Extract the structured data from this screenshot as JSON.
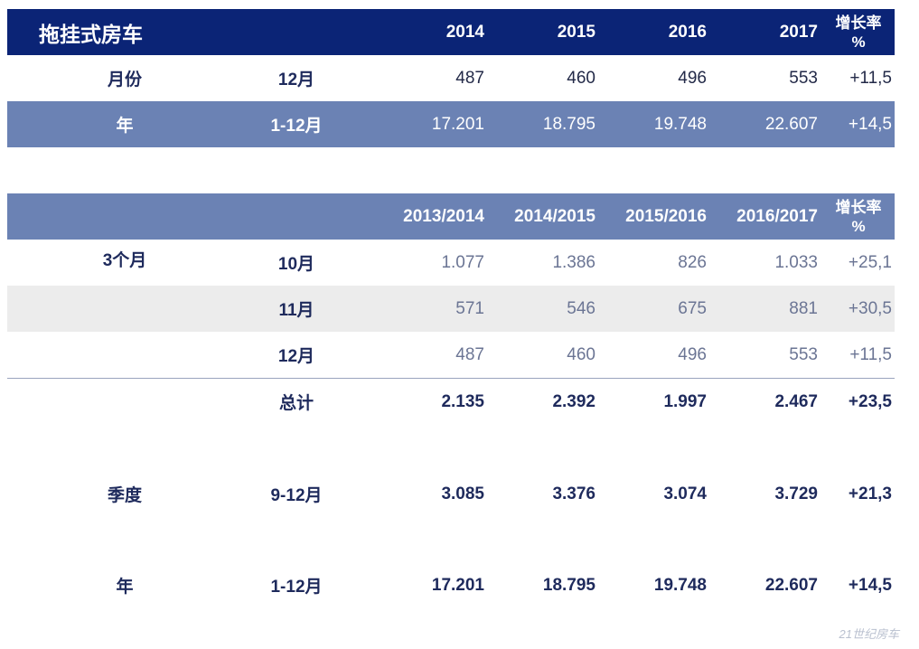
{
  "table1": {
    "title": "拖挂式房车",
    "years": [
      "2014",
      "2015",
      "2016",
      "2017"
    ],
    "growth_line1": "增长率",
    "growth_line2": "%",
    "rows": [
      {
        "label": "月份",
        "period": "12月",
        "values": [
          "487",
          "460",
          "496",
          "553"
        ],
        "growth": "+11,5"
      },
      {
        "label": "年",
        "period": "1-12月",
        "values": [
          "17.201",
          "18.795",
          "19.748",
          "22.607"
        ],
        "growth": "+14,5"
      }
    ]
  },
  "table2": {
    "seasons": [
      "2013/2014",
      "2014/2015",
      "2015/2016",
      "2016/2017"
    ],
    "growth_line1": "增长率",
    "growth_line2": "%",
    "group_label": "3个月",
    "rows": [
      {
        "period": "10月",
        "values": [
          "1.077",
          "1.386",
          "826",
          "1.033"
        ],
        "growth": "+25,1"
      },
      {
        "period": "11月",
        "values": [
          "571",
          "546",
          "675",
          "881"
        ],
        "growth": "+30,5"
      },
      {
        "period": "12月",
        "values": [
          "487",
          "460",
          "496",
          "553"
        ],
        "growth": "+11,5"
      }
    ],
    "total": {
      "period": "总计",
      "values": [
        "2.135",
        "2.392",
        "1.997",
        "2.467"
      ],
      "growth": "+23,5"
    },
    "quarter": {
      "label": "季度",
      "period": "9-12月",
      "values": [
        "3.085",
        "3.376",
        "3.074",
        "3.729"
      ],
      "growth": "+21,3"
    },
    "year": {
      "label": "年",
      "period": "1-12月",
      "values": [
        "17.201",
        "18.795",
        "19.748",
        "22.607"
      ],
      "growth": "+14,5"
    }
  },
  "watermark": "21世纪房车",
  "colors": {
    "dark_header": "#0b2476",
    "mid_header": "#6b82b4",
    "alt_row": "#ececec",
    "text_dark": "#1e2a5c"
  }
}
